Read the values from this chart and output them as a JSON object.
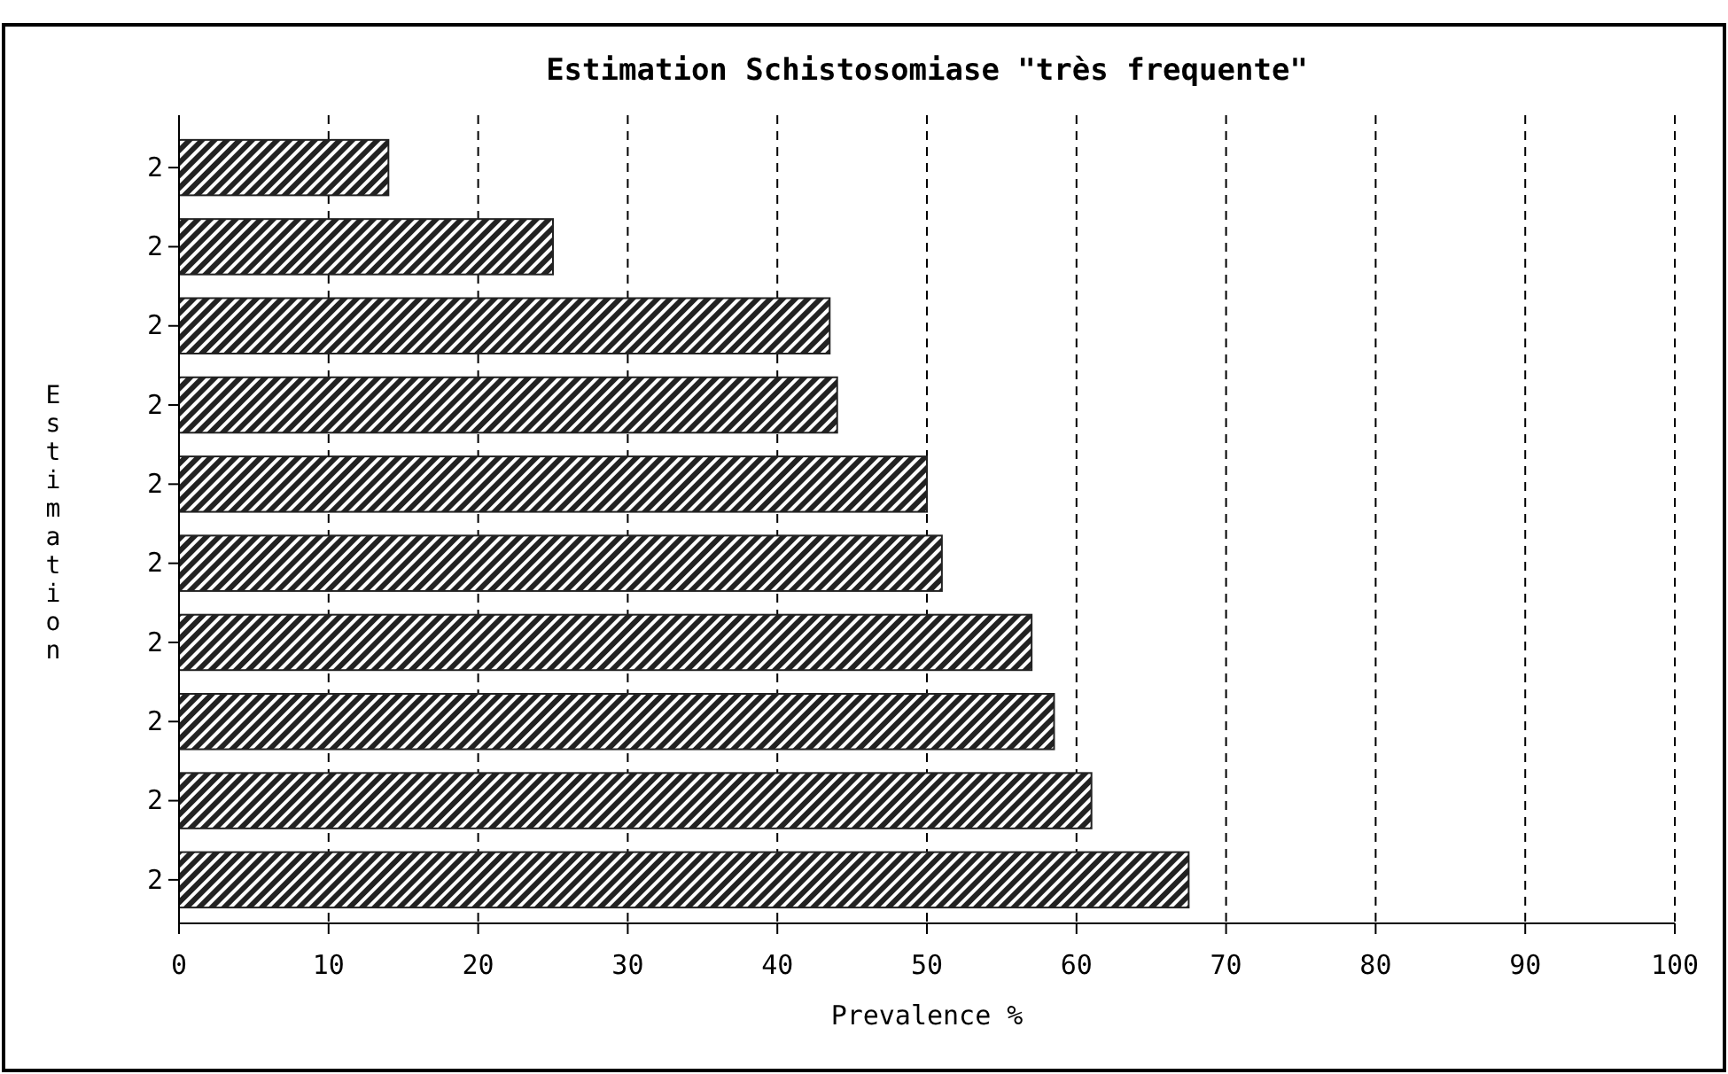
{
  "chart_data": {
    "type": "bar",
    "orientation": "horizontal",
    "title": "Estimation Schistosomiase \"très frequente\"",
    "xlabel": "Prevalence %",
    "ylabel": "Estimation",
    "categories": [
      "2",
      "2",
      "2",
      "2",
      "2",
      "2",
      "2",
      "2",
      "2",
      "2"
    ],
    "values": [
      14,
      25,
      43.5,
      44,
      50,
      51,
      57,
      58.5,
      61,
      67.5
    ],
    "color": "#222222",
    "xlim": [
      0,
      100
    ],
    "xticks": [
      0,
      10,
      20,
      30,
      40,
      50,
      60,
      70,
      80,
      90,
      100
    ],
    "grid": "x"
  }
}
